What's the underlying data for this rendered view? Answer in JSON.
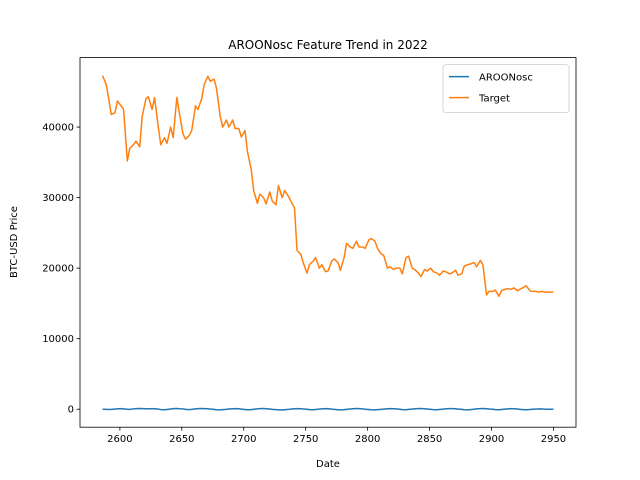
{
  "chart_data": {
    "type": "line",
    "title": "AROONosc Feature Trend in 2022",
    "x_label": "Date",
    "y_label": "BTC-USD Price",
    "x": [
      2586,
      2589,
      2591,
      2593,
      2596,
      2598,
      2601,
      2603,
      2606,
      2608,
      2611,
      2613,
      2616,
      2618,
      2621,
      2623,
      2626,
      2628,
      2631,
      2633,
      2636,
      2638,
      2641,
      2643,
      2646,
      2648,
      2651,
      2653,
      2656,
      2658,
      2661,
      2663,
      2666,
      2668,
      2671,
      2673,
      2676,
      2678,
      2681,
      2683,
      2686,
      2688,
      2691,
      2693,
      2696,
      2698,
      2701,
      2703,
      2706,
      2708,
      2711,
      2713,
      2716,
      2718,
      2721,
      2723,
      2726,
      2728,
      2731,
      2733,
      2736,
      2738,
      2741,
      2743,
      2746,
      2748,
      2751,
      2753,
      2756,
      2758,
      2761,
      2763,
      2766,
      2768,
      2771,
      2773,
      2776,
      2778,
      2781,
      2783,
      2786,
      2788,
      2791,
      2793,
      2796,
      2798,
      2801,
      2803,
      2806,
      2808,
      2811,
      2813,
      2816,
      2818,
      2821,
      2823,
      2826,
      2828,
      2831,
      2833,
      2836,
      2838,
      2841,
      2843,
      2846,
      2848,
      2851,
      2853,
      2856,
      2858,
      2861,
      2863,
      2866,
      2868,
      2871,
      2873,
      2876,
      2878,
      2881,
      2883,
      2886,
      2888,
      2891,
      2893,
      2896,
      2898,
      2901,
      2903,
      2906,
      2908,
      2911,
      2913,
      2916,
      2918,
      2921,
      2923,
      2926,
      2928,
      2931,
      2933,
      2936,
      2938,
      2941,
      2943,
      2946,
      2950
    ],
    "series": [
      {
        "name": "AROONosc",
        "color": "#1f77b4",
        "values": [
          0,
          -20,
          -40,
          -30,
          20,
          60,
          80,
          40,
          -10,
          -30,
          50,
          90,
          100,
          80,
          60,
          40,
          90,
          70,
          20,
          -50,
          -80,
          -40,
          30,
          80,
          100,
          60,
          40,
          -20,
          -60,
          -30,
          40,
          80,
          100,
          90,
          60,
          20,
          -30,
          -70,
          -90,
          -60,
          -20,
          30,
          70,
          90,
          60,
          10,
          -40,
          -80,
          -60,
          -10,
          40,
          80,
          100,
          70,
          30,
          -20,
          -60,
          -90,
          -100,
          -70,
          -30,
          20,
          60,
          90,
          70,
          30,
          -10,
          -50,
          -80,
          -40,
          10,
          50,
          80,
          60,
          20,
          -30,
          -70,
          -90,
          -60,
          -20,
          30,
          70,
          100,
          80,
          50,
          0,
          -40,
          -80,
          -100,
          -60,
          -20,
          20,
          60,
          90,
          70,
          40,
          -10,
          -50,
          -70,
          -30,
          20,
          60,
          90,
          100,
          70,
          30,
          -20,
          -60,
          -80,
          -40,
          10,
          50,
          80,
          90,
          60,
          20,
          -30,
          -70,
          -90,
          -50,
          0,
          40,
          80,
          100,
          70,
          30,
          -10,
          -60,
          -80,
          -40,
          10,
          50,
          90,
          70,
          30,
          -20,
          -50,
          -70,
          -40,
          -10,
          20,
          40,
          30,
          10,
          0,
          -10
        ]
      },
      {
        "name": "Target",
        "color": "#ff7f0e",
        "values": [
          47300,
          46000,
          44000,
          41800,
          42000,
          43700,
          43000,
          42500,
          35200,
          37000,
          37500,
          38000,
          37200,
          41500,
          44000,
          44300,
          42500,
          44200,
          40000,
          37500,
          38500,
          37700,
          40000,
          38500,
          44200,
          42000,
          39000,
          38300,
          38800,
          39500,
          43000,
          42500,
          44000,
          46000,
          47200,
          46500,
          46800,
          45500,
          41500,
          40000,
          41000,
          40000,
          41000,
          39800,
          39800,
          38600,
          39500,
          36500,
          34000,
          31000,
          29200,
          30500,
          30000,
          29100,
          30800,
          29500,
          29000,
          31700,
          30000,
          31000,
          30200,
          29500,
          28500,
          22500,
          22000,
          20800,
          19300,
          20500,
          21000,
          21500,
          20000,
          20500,
          19500,
          19600,
          21000,
          21300,
          20800,
          19700,
          21500,
          23500,
          23000,
          22800,
          23800,
          23000,
          23000,
          22800,
          24000,
          24200,
          23800,
          22800,
          22000,
          21800,
          20000,
          20200,
          19800,
          20000,
          20000,
          19200,
          21500,
          21700,
          20000,
          19800,
          19300,
          18800,
          19800,
          19600,
          20000,
          19500,
          19300,
          19000,
          19600,
          19500,
          19200,
          19300,
          19700,
          19000,
          19200,
          20300,
          20500,
          20600,
          20800,
          20200,
          21100,
          20500,
          16200,
          16700,
          16700,
          16900,
          16000,
          16800,
          17000,
          17100,
          17000,
          17200,
          16800,
          17000,
          17300,
          17500,
          16800,
          16700,
          16700,
          16600,
          16700,
          16600,
          16600,
          16600
        ]
      }
    ],
    "xlim": [
      2567.8,
      2968.2
    ],
    "ylim": [
      -2550,
      49850
    ],
    "xticks": [
      2600,
      2650,
      2700,
      2750,
      2800,
      2850,
      2900,
      2950
    ],
    "yticks": [
      0,
      10000,
      20000,
      30000,
      40000
    ],
    "legend": "upper right"
  }
}
